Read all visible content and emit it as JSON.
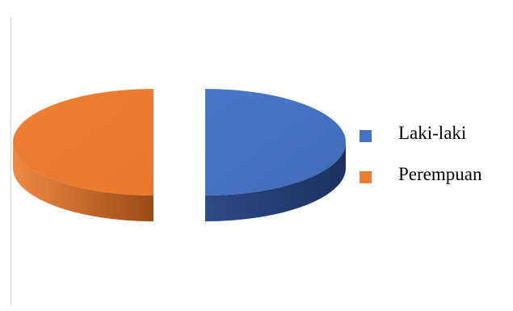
{
  "chart_data": {
    "type": "pie",
    "style": "3d-exploded",
    "categories": [
      "Laki-laki",
      "Perempuan"
    ],
    "values": [
      50,
      50
    ],
    "colors": [
      "#4472C4",
      "#ED7D31"
    ],
    "legend": "right",
    "title": ""
  }
}
